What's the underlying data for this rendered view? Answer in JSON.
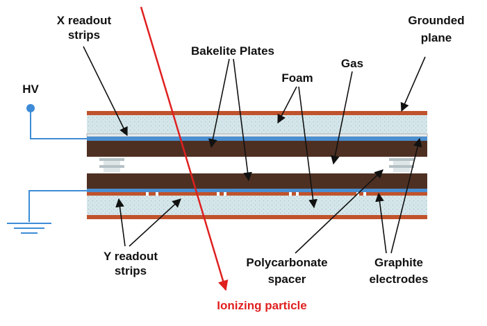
{
  "labels": {
    "x_readout": [
      "X readout",
      "strips"
    ],
    "grounded_plane": [
      "Grounded",
      "plane"
    ],
    "bakelite": "Bakelite Plates",
    "gas": "Gas",
    "foam": "Foam",
    "hv": "HV",
    "y_readout": [
      "Y readout",
      "strips"
    ],
    "polycarbonate": [
      "Polycarbonate",
      "spacer"
    ],
    "graphite": [
      "Graphite",
      "electrodes"
    ],
    "ionizing": "Ionizing particle"
  },
  "colors": {
    "copper": "#c0532c",
    "bakelite": "#4e3022",
    "foam": "#d4e6ea",
    "graphite": "#4a8fd0",
    "wire": "#3d8bd6",
    "particle": "#e01f1f",
    "spacer": "#b5c2c6",
    "arrow": "#111111"
  }
}
